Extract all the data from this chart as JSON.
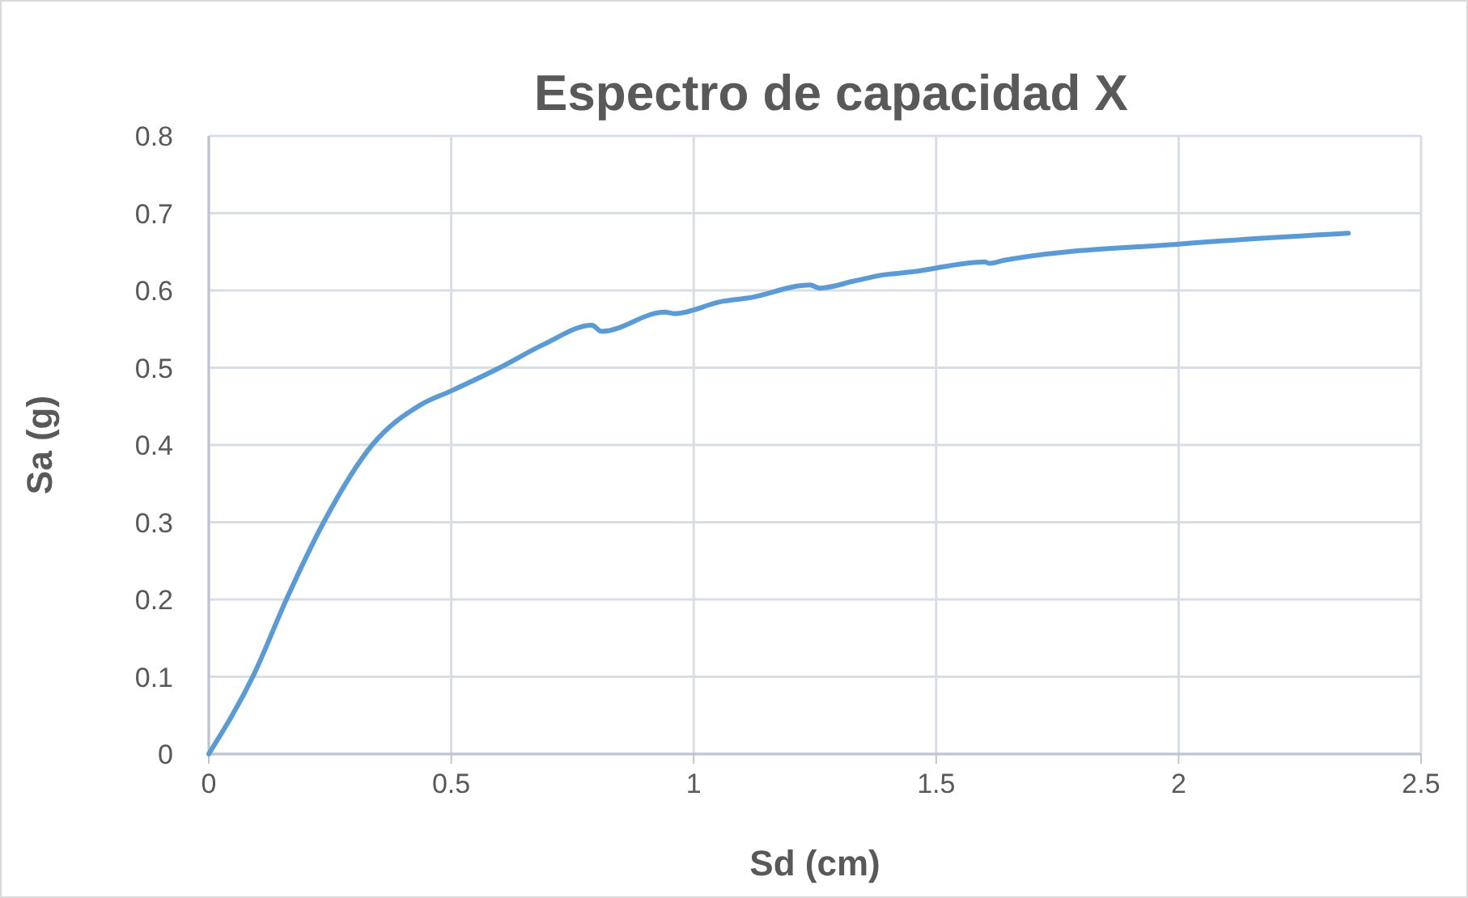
{
  "chart_data": {
    "type": "line",
    "title": "Espectro de capacidad X",
    "xlabel": "Sd (cm)",
    "ylabel": "Sa (g)",
    "xlim": [
      0,
      2.5
    ],
    "xticks": [
      0,
      0.5,
      1,
      1.5,
      2,
      2.5
    ],
    "ylim": [
      0,
      0.8
    ],
    "yticks": [
      0,
      0.1,
      0.2,
      0.3,
      0.4,
      0.5,
      0.6,
      0.7,
      0.8
    ],
    "grid": true,
    "series": [
      {
        "color": "#5b9bd5",
        "x": [
          0,
          0.093,
          0.16,
          0.237,
          0.337,
          0.437,
          0.5,
          0.6,
          0.69,
          0.79,
          0.81,
          0.94,
          0.96,
          1.06,
          1.11,
          1.24,
          1.26,
          1.33,
          1.39,
          1.45,
          1.6,
          1.61,
          1.64,
          2.0,
          2.35
        ],
        "values": [
          0,
          0.103,
          0.2,
          0.3,
          0.4,
          0.452,
          0.47,
          0.5,
          0.53,
          0.555,
          0.547,
          0.572,
          0.57,
          0.586,
          0.59,
          0.607,
          0.603,
          0.612,
          0.62,
          0.624,
          0.637,
          0.635,
          0.639,
          0.66,
          0.674
        ]
      }
    ]
  }
}
